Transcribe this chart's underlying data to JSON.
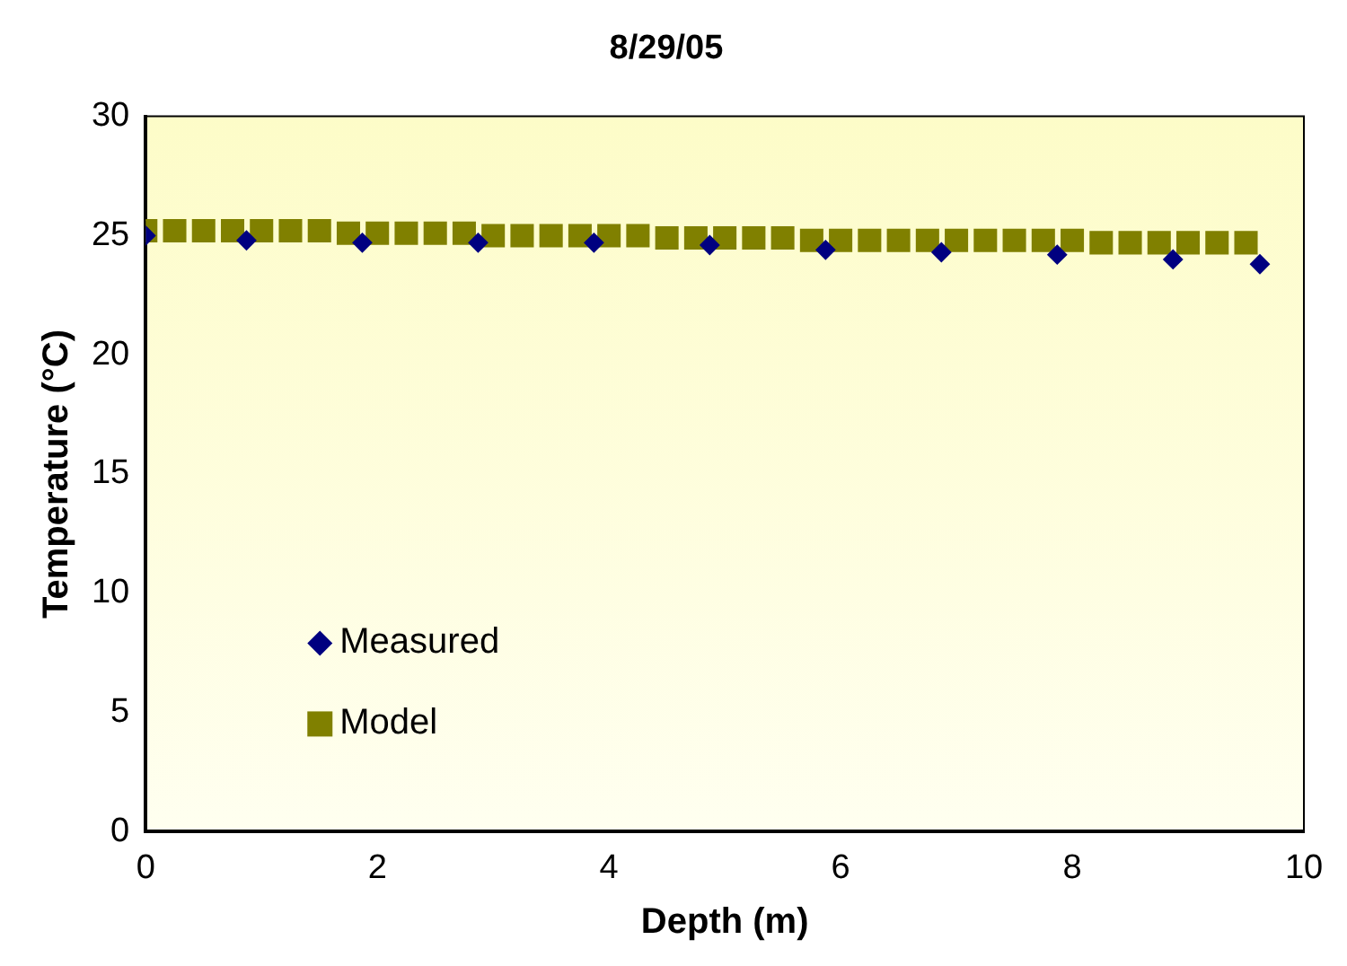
{
  "chart_data": {
    "type": "scatter",
    "title": "8/29/05",
    "xlabel": "Depth (m)",
    "ylabel": "Temperature (°C)",
    "series": [
      {
        "name": "Measured",
        "color": "#000080",
        "marker": "diamond",
        "x": [
          0,
          0.87,
          1.87,
          2.87,
          3.87,
          4.87,
          5.87,
          6.87,
          7.87,
          8.87,
          9.62
        ],
        "values": [
          25.0,
          24.8,
          24.7,
          24.7,
          24.7,
          24.6,
          24.4,
          24.3,
          24.2,
          24.0,
          23.8
        ]
      },
      {
        "name": "Model",
        "color": "#808000",
        "marker": "square",
        "x": [
          0,
          0.25,
          0.5,
          0.75,
          1,
          1.25,
          1.5,
          1.75,
          2,
          2.25,
          2.5,
          2.75,
          3,
          3.25,
          3.5,
          3.75,
          4,
          4.25,
          4.5,
          4.75,
          5,
          5.25,
          5.5,
          5.75,
          6,
          6.25,
          6.5,
          6.75,
          7,
          7.25,
          7.5,
          7.75,
          8,
          8.25,
          8.5,
          8.75,
          9,
          9.25,
          9.5
        ],
        "values": [
          25.2,
          25.2,
          25.2,
          25.2,
          25.2,
          25.2,
          25.2,
          25.1,
          25.1,
          25.1,
          25.1,
          25.1,
          25.0,
          25.0,
          25.0,
          25.0,
          25.0,
          25.0,
          24.9,
          24.9,
          24.9,
          24.9,
          24.9,
          24.8,
          24.8,
          24.8,
          24.8,
          24.8,
          24.8,
          24.8,
          24.8,
          24.8,
          24.8,
          24.7,
          24.7,
          24.7,
          24.7,
          24.7,
          24.7
        ]
      }
    ],
    "xlim": [
      0,
      10
    ],
    "xticks": [
      0,
      2,
      4,
      6,
      8,
      10
    ],
    "ylim": [
      0,
      30
    ],
    "yticks": [
      0,
      5,
      10,
      15,
      20,
      25,
      30
    ],
    "grid": false,
    "legend": "bottom left"
  }
}
